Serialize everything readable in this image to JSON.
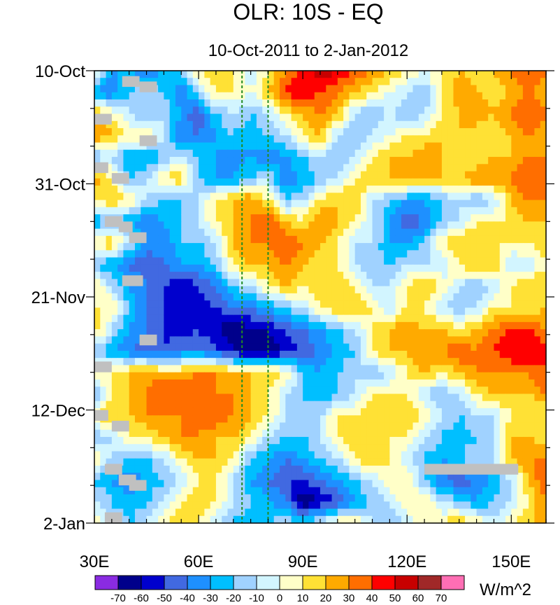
{
  "chart_data": {
    "type": "heatmap",
    "title": "OLR: 10S - EQ",
    "subtitle": "10-Oct-2011 to 2-Jan-2012",
    "x_range": [
      30,
      160
    ],
    "x_ticks": [
      {
        "value": 30,
        "label": "30E"
      },
      {
        "value": 60,
        "label": "60E"
      },
      {
        "value": 90,
        "label": "90E"
      },
      {
        "value": 120,
        "label": "120E"
      },
      {
        "value": 150,
        "label": "150E"
      }
    ],
    "y_range_days": [
      0,
      84
    ],
    "y_ticks": [
      {
        "day": 0,
        "label": "10-Oct"
      },
      {
        "day": 21,
        "label": "31-Oct"
      },
      {
        "day": 42,
        "label": "21-Nov"
      },
      {
        "day": 63,
        "label": "12-Dec"
      },
      {
        "day": 84,
        "label": "2-Jan"
      }
    ],
    "reference_lines_lon": [
      72.5,
      80
    ],
    "reference_line_color": "#228b22",
    "colorbar": {
      "unit_label": "W/m^2",
      "levels": [
        "-70",
        "-60",
        "-50",
        "-40",
        "-30",
        "-20",
        "-10",
        "0",
        "10",
        "20",
        "30",
        "40",
        "50",
        "60",
        "70"
      ],
      "colors": [
        "#8a2be2",
        "#00008b",
        "#0000cd",
        "#4169e1",
        "#1e90ff",
        "#00bfff",
        "#a0d2ff",
        "#d2f5ff",
        "#ffffc8",
        "#ffe135",
        "#ffaa00",
        "#ff6e00",
        "#ff0000",
        "#c80000",
        "#a02828",
        "#ff6eb4"
      ]
    },
    "missing_color": "#c0c0c0",
    "grid_days": [
      0,
      4,
      8,
      12,
      16,
      20,
      24,
      28,
      32,
      36,
      40,
      44,
      48,
      52,
      56,
      60,
      64,
      68,
      72,
      76,
      80,
      84
    ],
    "grid_lons": [
      30,
      35,
      40,
      45,
      50,
      55,
      60,
      65,
      70,
      75,
      80,
      85,
      90,
      95,
      100,
      105,
      110,
      115,
      120,
      125,
      130,
      135,
      140,
      145,
      150,
      155,
      160
    ],
    "anomaly_rows": [
      [
        5,
        -30,
        -30,
        -40,
        -30,
        -20,
        10,
        20,
        10,
        -10,
        10,
        30,
        40,
        60,
        50,
        40,
        30,
        20,
        10,
        0,
        10,
        20,
        10,
        20,
        30,
        40,
        30
      ],
      [
        -30,
        -40,
        -20,
        -10,
        -20,
        -40,
        -10,
        10,
        10,
        0,
        20,
        40,
        50,
        40,
        30,
        20,
        10,
        0,
        -10,
        -20,
        10,
        30,
        20,
        10,
        20,
        30,
        20
      ],
      [
        20,
        10,
        -10,
        -20,
        -10,
        -30,
        -50,
        -20,
        -10,
        -20,
        -10,
        10,
        20,
        30,
        20,
        -10,
        -20,
        -10,
        -20,
        -10,
        10,
        20,
        30,
        20,
        30,
        40,
        30
      ],
      [
        30,
        20,
        10,
        10,
        -10,
        -40,
        -40,
        -30,
        -20,
        -30,
        -20,
        -10,
        10,
        20,
        -10,
        -20,
        -10,
        0,
        10,
        10,
        20,
        20,
        10,
        10,
        20,
        30,
        20
      ],
      [
        -20,
        -10,
        -30,
        -30,
        -20,
        -10,
        -20,
        -30,
        -40,
        -30,
        -40,
        -30,
        -20,
        -10,
        -20,
        -10,
        10,
        20,
        20,
        30,
        20,
        10,
        10,
        20,
        20,
        30,
        30
      ],
      [
        30,
        10,
        -20,
        -10,
        10,
        20,
        -20,
        -30,
        -30,
        -20,
        -10,
        -40,
        -30,
        -20,
        -10,
        10,
        20,
        20,
        30,
        20,
        20,
        20,
        30,
        30,
        30,
        40,
        40
      ],
      [
        10,
        20,
        10,
        -10,
        -20,
        -20,
        -10,
        10,
        20,
        30,
        10,
        -20,
        -10,
        10,
        20,
        20,
        -10,
        -20,
        -30,
        -30,
        -20,
        -10,
        -20,
        -10,
        20,
        30,
        30
      ],
      [
        -30,
        -20,
        -30,
        -40,
        -30,
        -20,
        -10,
        10,
        20,
        30,
        40,
        20,
        10,
        30,
        20,
        10,
        -10,
        -30,
        -50,
        -40,
        -20,
        -10,
        10,
        10,
        10,
        20,
        20
      ],
      [
        10,
        20,
        -10,
        -30,
        -40,
        -20,
        -20,
        -10,
        20,
        30,
        30,
        40,
        30,
        20,
        10,
        -10,
        -10,
        -30,
        -30,
        -20,
        10,
        20,
        20,
        10,
        10,
        10,
        20
      ],
      [
        -20,
        -30,
        -40,
        -50,
        -40,
        -30,
        -30,
        -20,
        10,
        20,
        20,
        30,
        20,
        10,
        10,
        -10,
        -20,
        -20,
        -10,
        -10,
        -10,
        10,
        20,
        20,
        -10,
        -10,
        10
      ],
      [
        10,
        -10,
        -30,
        -40,
        -50,
        -60,
        -50,
        -40,
        -20,
        -10,
        10,
        20,
        10,
        20,
        20,
        10,
        -10,
        -10,
        10,
        20,
        10,
        -10,
        -20,
        -10,
        10,
        20,
        20
      ],
      [
        10,
        10,
        -20,
        -40,
        -50,
        -60,
        -60,
        -50,
        -40,
        -40,
        -30,
        -20,
        -10,
        10,
        20,
        20,
        10,
        -10,
        10,
        10,
        -10,
        -20,
        -10,
        10,
        10,
        10,
        20
      ],
      [
        20,
        -10,
        -30,
        -40,
        -50,
        -60,
        -50,
        -60,
        -70,
        -60,
        -60,
        -50,
        -40,
        -30,
        -20,
        -10,
        10,
        20,
        30,
        20,
        20,
        10,
        20,
        30,
        40,
        40,
        30
      ],
      [
        -20,
        -30,
        -40,
        -50,
        -50,
        -40,
        -40,
        -50,
        -60,
        -70,
        -70,
        -60,
        -50,
        -40,
        -30,
        -20,
        10,
        20,
        20,
        30,
        30,
        40,
        30,
        40,
        50,
        50,
        40
      ],
      [
        10,
        10,
        20,
        30,
        20,
        20,
        30,
        30,
        20,
        20,
        20,
        10,
        -20,
        -30,
        -20,
        -10,
        -20,
        -10,
        10,
        20,
        10,
        20,
        30,
        30,
        30,
        30,
        40
      ],
      [
        -20,
        10,
        20,
        30,
        40,
        40,
        40,
        30,
        30,
        20,
        10,
        -10,
        -20,
        -30,
        -20,
        -10,
        10,
        10,
        10,
        -10,
        -20,
        -10,
        10,
        20,
        20,
        20,
        30
      ],
      [
        10,
        20,
        20,
        30,
        30,
        30,
        30,
        40,
        30,
        20,
        10,
        -10,
        -20,
        -10,
        10,
        10,
        20,
        20,
        20,
        10,
        -10,
        -20,
        -10,
        -10,
        10,
        10,
        10
      ],
      [
        -20,
        -10,
        10,
        10,
        20,
        30,
        30,
        20,
        20,
        10,
        -10,
        -20,
        -20,
        -10,
        10,
        20,
        20,
        10,
        10,
        -10,
        -20,
        -30,
        -20,
        -10,
        20,
        20,
        10
      ],
      [
        10,
        -10,
        -20,
        -20,
        -10,
        10,
        20,
        20,
        10,
        -20,
        -30,
        -40,
        -30,
        -20,
        -10,
        10,
        20,
        10,
        -10,
        -20,
        -30,
        -20,
        -10,
        -10,
        20,
        30,
        30
      ],
      [
        -20,
        -30,
        -40,
        -30,
        -20,
        -10,
        10,
        10,
        -10,
        -30,
        -40,
        -50,
        -50,
        -40,
        -30,
        -20,
        -10,
        10,
        10,
        -20,
        -40,
        -50,
        -40,
        -30,
        -10,
        20,
        40
      ],
      [
        -10,
        -20,
        -30,
        -20,
        -10,
        10,
        20,
        10,
        -10,
        -20,
        -30,
        -40,
        -70,
        -60,
        -50,
        -30,
        -20,
        -10,
        10,
        10,
        -10,
        -20,
        -30,
        -20,
        -10,
        10,
        30
      ],
      [
        10,
        -10,
        -20,
        -10,
        10,
        20,
        10,
        -10,
        -20,
        -30,
        -20,
        -10,
        -20,
        -10,
        10,
        10,
        -10,
        -20,
        -10,
        10,
        10,
        20,
        10,
        -10,
        10,
        20,
        20
      ]
    ],
    "missing_patches": [
      {
        "lon": [
          38,
          43
        ],
        "day_start": 1,
        "day_end": 3
      },
      {
        "lon": [
          43,
          48
        ],
        "day_start": 2,
        "day_end": 4
      },
      {
        "lon": [
          30,
          35
        ],
        "day_start": 8,
        "day_end": 10
      },
      {
        "lon": [
          43,
          48
        ],
        "day_start": 12,
        "day_end": 14
      },
      {
        "lon": [
          30,
          34
        ],
        "day_start": 17,
        "day_end": 19
      },
      {
        "lon": [
          35,
          40
        ],
        "day_start": 19,
        "day_end": 21
      },
      {
        "lon": [
          33,
          38
        ],
        "day_start": 27,
        "day_end": 29
      },
      {
        "lon": [
          37,
          41
        ],
        "day_start": 28,
        "day_end": 30
      },
      {
        "lon": [
          40,
          45
        ],
        "day_start": 30,
        "day_end": 32
      },
      {
        "lon": [
          38,
          44
        ],
        "day_start": 38,
        "day_end": 40
      },
      {
        "lon": [
          43,
          48
        ],
        "day_start": 49,
        "day_end": 51
      },
      {
        "lon": [
          30,
          35
        ],
        "day_start": 54,
        "day_end": 56
      },
      {
        "lon": [
          30,
          34
        ],
        "day_start": 63,
        "day_end": 65
      },
      {
        "lon": [
          35,
          40
        ],
        "day_start": 65,
        "day_end": 67
      },
      {
        "lon": [
          33,
          38
        ],
        "day_start": 73,
        "day_end": 75
      },
      {
        "lon": [
          37,
          42
        ],
        "day_start": 75,
        "day_end": 77
      },
      {
        "lon": [
          40,
          45
        ],
        "day_start": 76,
        "day_end": 78
      },
      {
        "lon": [
          33,
          38
        ],
        "day_start": 82,
        "day_end": 84
      },
      {
        "lon": [
          125,
          152
        ],
        "day_start": 73,
        "day_end": 75
      }
    ]
  }
}
